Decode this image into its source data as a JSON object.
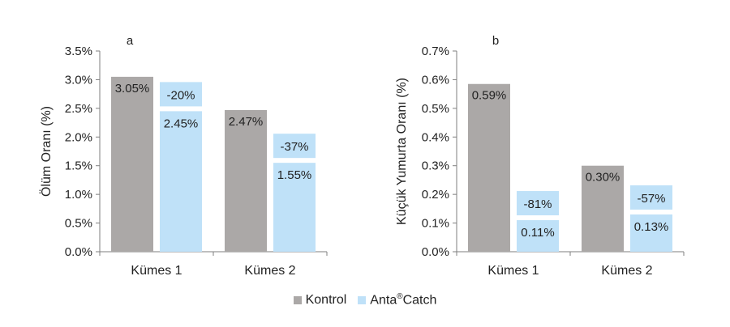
{
  "colors": {
    "kontrol": "#aba8a7",
    "anta": "#bfe1f8",
    "axis": "#7f7f7f",
    "text": "#222222"
  },
  "legend": {
    "kontrol_label": "Kontrol",
    "anta_label_pre": "Anta",
    "anta_label_sup": "®",
    "anta_label_post": "Catch"
  },
  "chart_data": [
    {
      "type": "bar",
      "panel_label": "a",
      "ylabel": "Ölüm Oranı (%)",
      "ylim": [
        0,
        3.5
      ],
      "yticks": [
        "0.0%",
        "0.5%",
        "1.0%",
        "1.5%",
        "2.0%",
        "2.5%",
        "3.0%",
        "3.5%"
      ],
      "categories": [
        "Kümes 1",
        "Kümes 2"
      ],
      "series": [
        {
          "name": "Kontrol",
          "values": [
            3.05,
            2.47
          ],
          "labels": [
            "3.05%",
            "2.47%"
          ]
        },
        {
          "name": "Anta®Catch",
          "values": [
            2.45,
            1.55
          ],
          "labels": [
            "2.45%",
            "1.55%"
          ]
        }
      ],
      "change_labels": [
        "-20%",
        "-37%"
      ]
    },
    {
      "type": "bar",
      "panel_label": "b",
      "ylabel": "Küçük Yumurta Oranı (%)",
      "ylim": [
        0,
        0.7
      ],
      "yticks": [
        "0.0%",
        "0.1%",
        "0.2%",
        "0.3%",
        "0.4%",
        "0.5%",
        "0.6%",
        "0.7%"
      ],
      "categories": [
        "Kümes 1",
        "Kümes 2"
      ],
      "series": [
        {
          "name": "Kontrol",
          "values": [
            0.585,
            0.3
          ],
          "labels": [
            "0.59%",
            "0.30%"
          ]
        },
        {
          "name": "Anta®Catch",
          "values": [
            0.11,
            0.13
          ],
          "labels": [
            "0.11%",
            "0.13%"
          ]
        }
      ],
      "change_labels": [
        "-81%",
        "-57%"
      ]
    }
  ]
}
